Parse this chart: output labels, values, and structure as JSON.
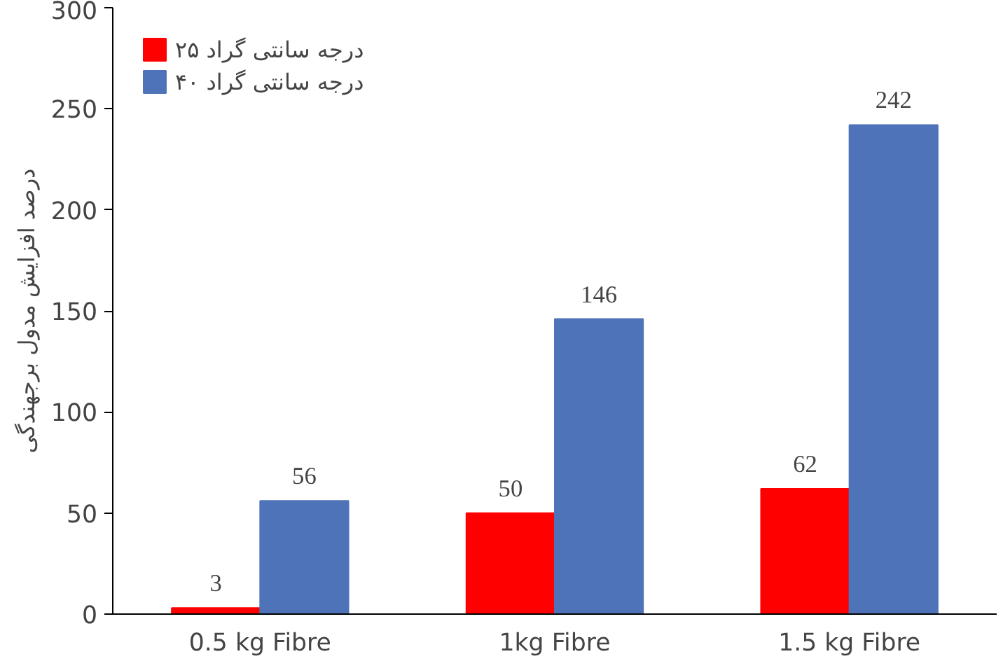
{
  "chart_data": {
    "type": "bar",
    "categories": [
      "0.5 kg Fibre",
      "1kg Fibre",
      "1.5 kg Fibre"
    ],
    "series": [
      {
        "name": "۲۵ درجه سانتی گراد",
        "color": "#ff0000",
        "values": [
          3,
          50,
          62
        ]
      },
      {
        "name": "۴۰ درجه سانتی گراد",
        "color": "#4f73b8",
        "values": [
          56,
          146,
          242
        ]
      }
    ],
    "ylabel": "درصد افزایش مدول برجهندگی",
    "ylim": [
      0,
      300
    ],
    "yticks": [
      0,
      50,
      100,
      150,
      200,
      250,
      300
    ],
    "grid": false,
    "legend": "top left",
    "data_labels": true
  }
}
